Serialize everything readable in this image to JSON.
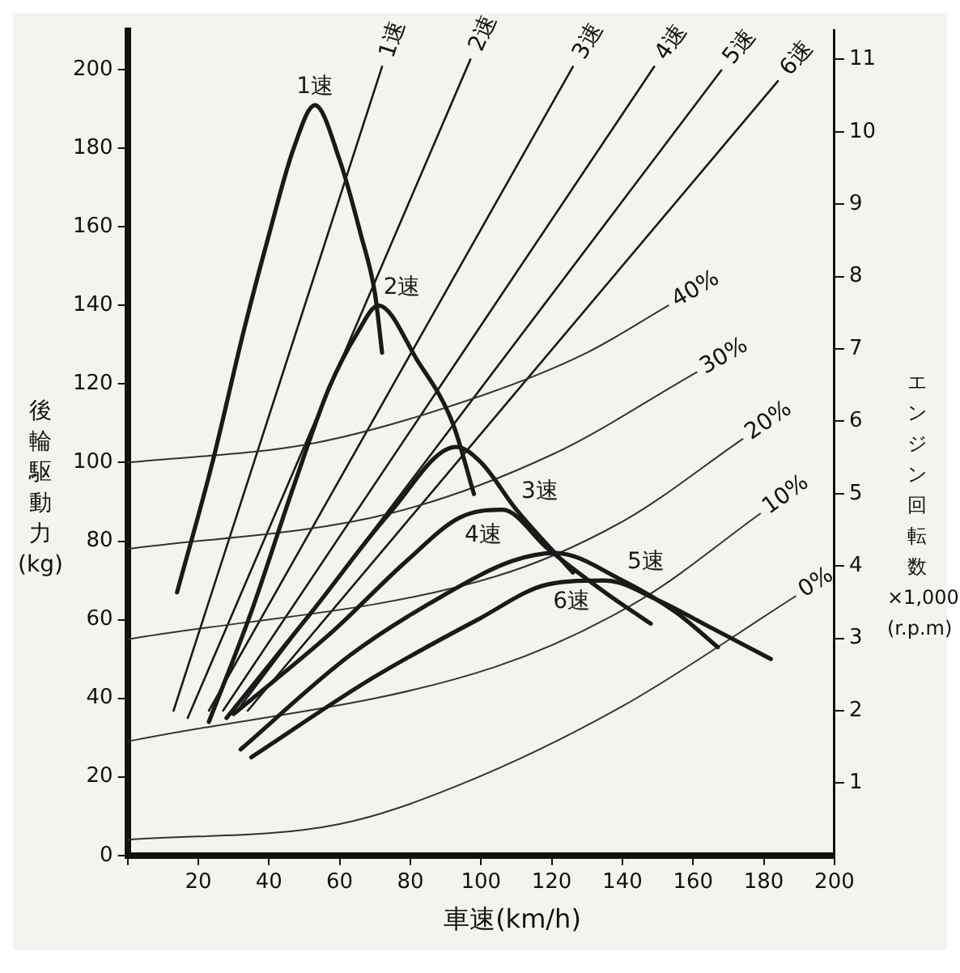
{
  "chart_data": {
    "type": "line",
    "xlabel": "車速(km/h)",
    "ylabel": "後輪駆動力(kg)",
    "y2label": "エンジン回転数×1,000(r.p.m)",
    "xlim": [
      0,
      200
    ],
    "xticks": [
      {
        "value": 0,
        "label": null
      },
      20,
      40,
      60,
      80,
      100,
      120,
      140,
      160,
      180,
      200
    ],
    "ylim": [
      0,
      210
    ],
    "yticks": [
      0,
      20,
      40,
      60,
      80,
      100,
      120,
      140,
      160,
      180,
      200
    ],
    "y2lim": [
      0,
      11.4
    ],
    "y2ticks": [
      1,
      2,
      3,
      4,
      5,
      6,
      7,
      8,
      9,
      10,
      11
    ],
    "grid": false,
    "legend": false,
    "marker": "none",
    "line_style": "solid",
    "series": [
      {
        "name": "1速",
        "color": "#1a1a1a",
        "x": [
          14,
          24,
          33,
          40,
          47,
          53,
          60,
          66,
          70,
          72
        ],
        "values": [
          67,
          100,
          134,
          158,
          180,
          191,
          177,
          158,
          143,
          128
        ]
      },
      {
        "name": "2速",
        "color": "#1a1a1a",
        "x": [
          23,
          35,
          47,
          57,
          65,
          71,
          82,
          92,
          98
        ],
        "values": [
          34,
          62,
          94,
          119,
          133,
          140,
          126,
          110,
          92
        ]
      },
      {
        "name": "3速",
        "color": "#1a1a1a",
        "x": [
          28,
          53,
          74,
          93,
          100,
          110,
          126
        ],
        "values": [
          35,
          63,
          87,
          104,
          100,
          88,
          72
        ]
      },
      {
        "name": "4速",
        "color": "#1a1a1a",
        "x": [
          30,
          58,
          79,
          94,
          106,
          119,
          135,
          148
        ],
        "values": [
          36,
          57,
          75,
          86,
          88,
          78,
          67,
          59
        ]
      },
      {
        "name": "5速",
        "color": "#1a1a1a",
        "x": [
          32,
          63,
          89,
          109,
          121,
          140,
          155,
          167
        ],
        "values": [
          27,
          51,
          66,
          75,
          77,
          70,
          62,
          53
        ]
      },
      {
        "name": "6速",
        "color": "#1a1a1a",
        "x": [
          35,
          69,
          99,
          119,
          135,
          150,
          165,
          182
        ],
        "values": [
          25,
          45,
          60,
          69,
          70,
          65,
          58,
          50
        ]
      },
      {
        "name": "40%",
        "color": "#333333",
        "x": [
          0,
          53,
          100,
          130,
          153
        ],
        "values": [
          100,
          105,
          117,
          128,
          140
        ]
      },
      {
        "name": "30%",
        "color": "#333333",
        "x": [
          0,
          74,
          120,
          161
        ],
        "values": [
          78,
          87,
          102,
          123
        ]
      },
      {
        "name": "20%",
        "color": "#333333",
        "x": [
          0,
          104,
          140,
          174
        ],
        "values": [
          55,
          71,
          85,
          106
        ]
      },
      {
        "name": "10%",
        "color": "#333333",
        "x": [
          0,
          104,
          145,
          179
        ],
        "values": [
          29,
          48,
          65,
          87
        ]
      },
      {
        "name": "0%",
        "color": "#333333",
        "x": [
          0,
          60,
          94,
          140,
          189
        ],
        "values": [
          4,
          8,
          18,
          38,
          66
        ]
      },
      {
        "name": "1速",
        "color": "#1a1a1a",
        "axis": "y2",
        "x": [
          13,
          72
        ],
        "values": [
          2.0,
          10.9
        ]
      },
      {
        "name": "2速",
        "color": "#1a1a1a",
        "axis": "y2",
        "x": [
          17,
          97
        ],
        "values": [
          1.9,
          11.0
        ]
      },
      {
        "name": "3速",
        "color": "#1a1a1a",
        "axis": "y2",
        "x": [
          23,
          126
        ],
        "values": [
          2.0,
          10.9
        ]
      },
      {
        "name": "4速",
        "color": "#1a1a1a",
        "axis": "y2",
        "x": [
          27,
          149
        ],
        "values": [
          2.0,
          10.9
        ]
      },
      {
        "name": "5速",
        "color": "#1a1a1a",
        "axis": "y2",
        "x": [
          31,
          168
        ],
        "values": [
          2.0,
          10.85
        ]
      },
      {
        "name": "6速",
        "color": "#1a1a1a",
        "axis": "y2",
        "x": [
          34,
          184
        ],
        "values": [
          2.0,
          10.7
        ]
      }
    ]
  }
}
